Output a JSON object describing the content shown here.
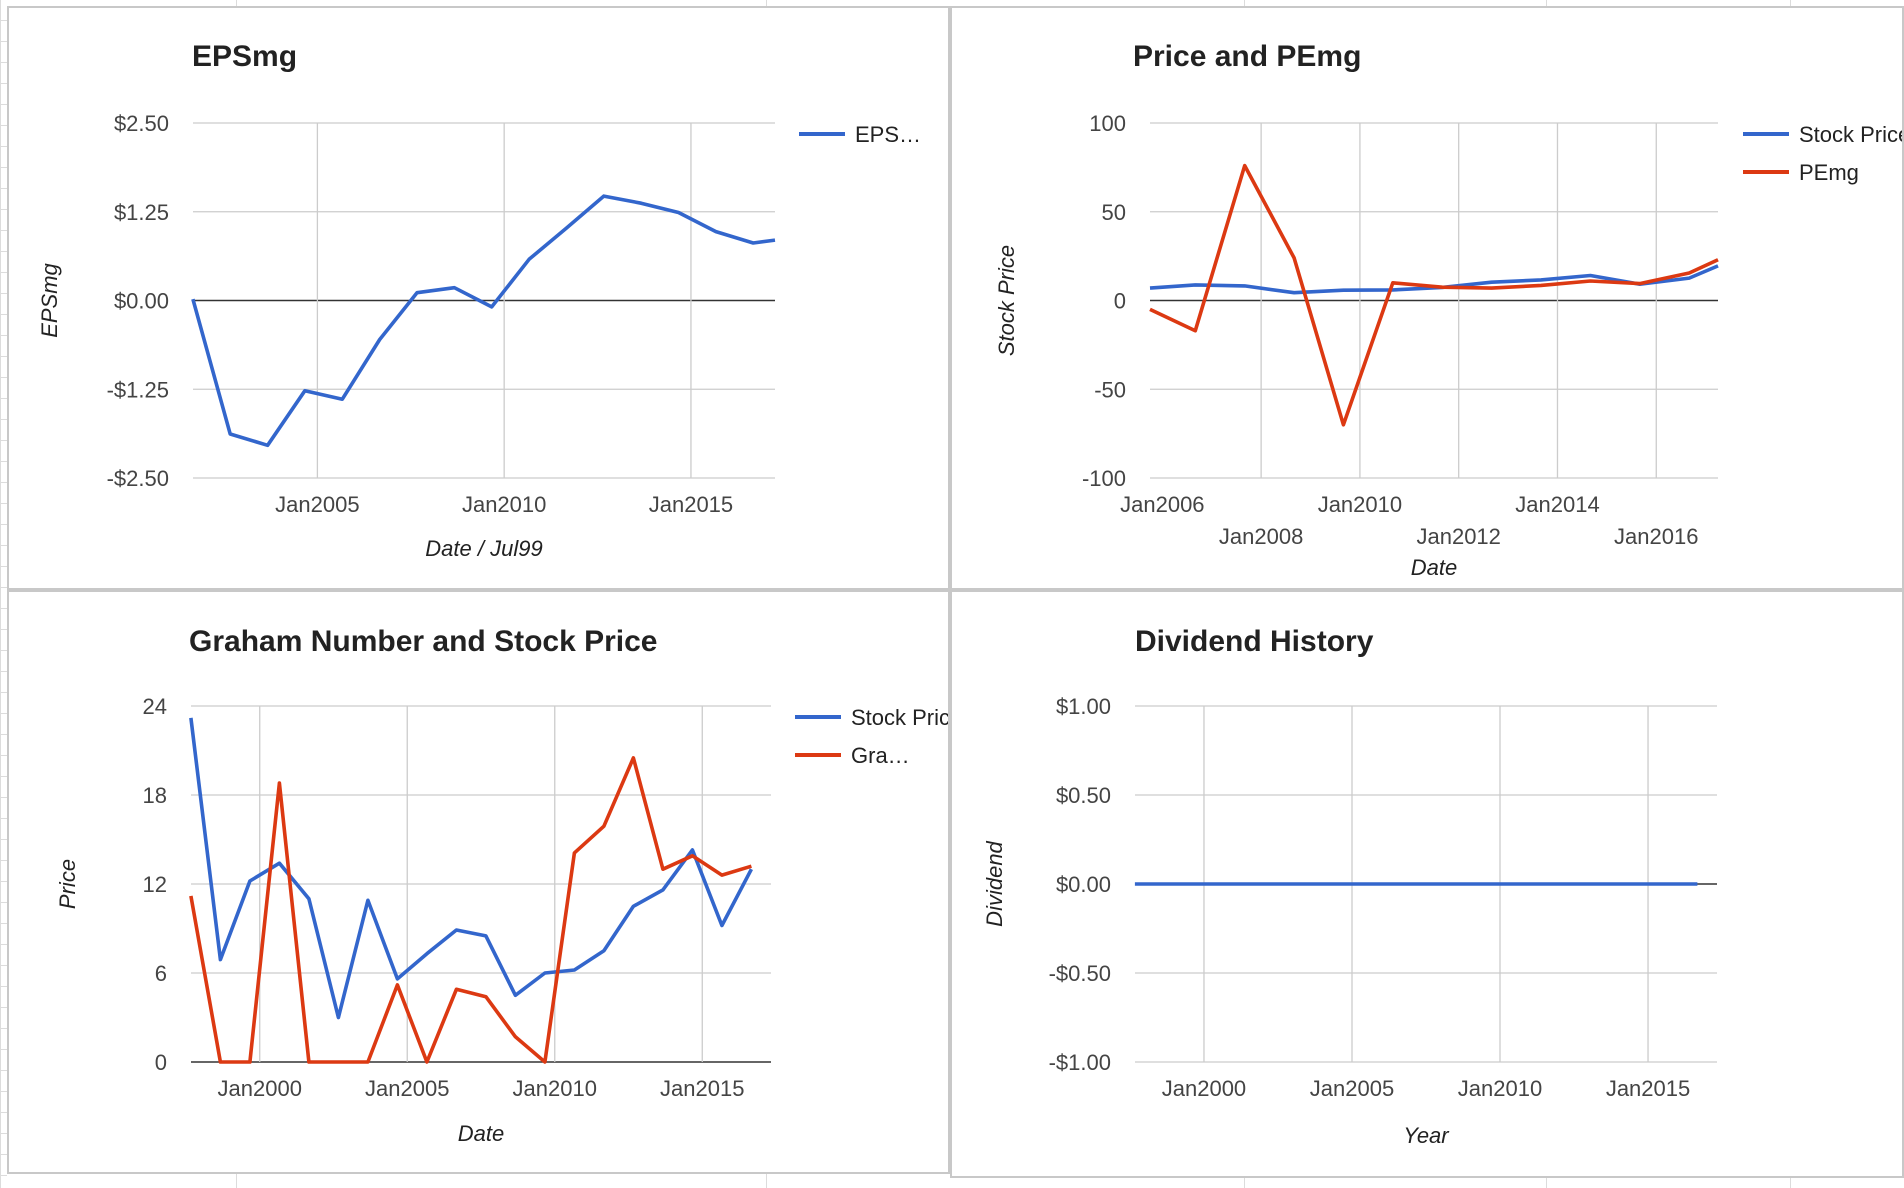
{
  "colors": {
    "stock_price": "#3366cc",
    "second_series": "#dc3912",
    "gridline": "#cccccc",
    "zero_line": "#333333",
    "panel_border": "#c8c8c8",
    "text": "#222222",
    "axis_text": "#444444"
  },
  "chart_data": [
    {
      "type": "line",
      "title": "EPSmg",
      "xlabel": "Date / Jul99",
      "ylabel": "EPSmg",
      "ylim": [
        -2.5,
        2.5
      ],
      "y_ticks": [
        "$2.50",
        "$1.25",
        "$0.00",
        "-$1.25",
        "-$2.50"
      ],
      "x_ticks": [
        "Jan2005",
        "Jan2010",
        "Jan2015"
      ],
      "legend_position": "right",
      "grid": true,
      "series": [
        {
          "name": "EPS…",
          "color": "#3366cc",
          "x": [
            "2001-09",
            "2002-09",
            "2003-09",
            "2004-09",
            "2005-09",
            "2006-09",
            "2007-09",
            "2008-09",
            "2009-09",
            "2010-09",
            "2011-09",
            "2012-09",
            "2013-09",
            "2014-09",
            "2015-09",
            "2016-09",
            "2017-04"
          ],
          "values": [
            0.02,
            -1.88,
            -2.04,
            -1.27,
            -1.39,
            -0.55,
            0.11,
            0.18,
            -0.09,
            0.58,
            1.02,
            1.47,
            1.37,
            1.24,
            0.97,
            0.81,
            0.85
          ]
        }
      ]
    },
    {
      "type": "line",
      "title": "Price and PEmg",
      "xlabel": "Date",
      "ylabel": "Stock Price",
      "ylim": [
        -100,
        100
      ],
      "y_ticks": [
        "100",
        "50",
        "0",
        "-50",
        "-100"
      ],
      "x_ticks": [
        "Jan2006",
        "Jan2008",
        "Jan2010",
        "Jan2012",
        "Jan2014",
        "Jan2016"
      ],
      "legend_position": "right",
      "grid": true,
      "series": [
        {
          "name": "Stock Price",
          "color": "#3366cc",
          "x": [
            "2005-10",
            "2006-09",
            "2007-09",
            "2008-09",
            "2009-09",
            "2010-09",
            "2011-09",
            "2012-09",
            "2013-09",
            "2014-09",
            "2015-09",
            "2016-09",
            "2017-04"
          ],
          "values": [
            7,
            8.8,
            8.2,
            4.4,
            5.8,
            6,
            7.4,
            10.3,
            11.6,
            14.1,
            9.2,
            12.6,
            19.5
          ]
        },
        {
          "name": "PEmg",
          "color": "#dc3912",
          "x": [
            "2005-10",
            "2006-09",
            "2007-09",
            "2008-09",
            "2009-09",
            "2010-09",
            "2011-09",
            "2012-09",
            "2013-09",
            "2014-09",
            "2015-09",
            "2016-09",
            "2017-04"
          ],
          "values": [
            -5,
            -17,
            76,
            24,
            -70,
            10,
            7.5,
            7,
            8.5,
            11,
            9.5,
            15.5,
            23
          ]
        }
      ]
    },
    {
      "type": "line",
      "title": "Graham Number and Stock Price",
      "xlabel": "Date",
      "ylabel": "Price",
      "ylim": [
        0,
        24
      ],
      "y_ticks": [
        "24",
        "18",
        "12",
        "6",
        "0"
      ],
      "x_ticks": [
        "Jan2000",
        "Jan2005",
        "Jan2010",
        "Jan2015"
      ],
      "legend_position": "right",
      "grid": true,
      "series": [
        {
          "name": "Stock Price",
          "color": "#3366cc",
          "x": [
            "1997-09",
            "1998-09",
            "1999-09",
            "2000-09",
            "2001-09",
            "2002-09",
            "2003-09",
            "2004-09",
            "2005-09",
            "2006-09",
            "2007-09",
            "2008-09",
            "2009-09",
            "2010-09",
            "2011-09",
            "2012-09",
            "2013-09",
            "2014-09",
            "2015-09",
            "2016-09"
          ],
          "values": [
            23.2,
            6.9,
            12.2,
            13.4,
            11,
            3,
            10.9,
            5.6,
            7.3,
            8.9,
            8.5,
            4.5,
            6,
            6.2,
            7.5,
            10.5,
            11.6,
            14.3,
            9.2,
            13
          ]
        },
        {
          "name": "Gra…",
          "color": "#dc3912",
          "x": [
            "1997-09",
            "1998-09",
            "1999-09",
            "2000-09",
            "2001-09",
            "2002-09",
            "2003-09",
            "2004-09",
            "2005-09",
            "2006-09",
            "2007-09",
            "2008-09",
            "2009-09",
            "2010-09",
            "2011-09",
            "2012-09",
            "2013-09",
            "2014-09",
            "2015-09",
            "2016-09"
          ],
          "values": [
            11.2,
            0,
            0,
            18.8,
            0,
            0,
            0,
            5.2,
            0,
            4.9,
            4.4,
            1.7,
            0,
            14.1,
            15.9,
            20.5,
            13,
            13.9,
            12.6,
            13.2
          ]
        }
      ]
    },
    {
      "type": "line",
      "title": "Dividend History",
      "xlabel": "Year",
      "ylabel": "Dividend",
      "ylim": [
        -1,
        1
      ],
      "y_ticks": [
        "$1.00",
        "$0.50",
        "$0.00",
        "-$0.50",
        "-$1.00"
      ],
      "x_ticks": [
        "Jan2000",
        "Jan2005",
        "Jan2010",
        "Jan2015"
      ],
      "legend_position": "none",
      "grid": true,
      "series": [
        {
          "color": "#3366cc",
          "x": [
            "1997-09",
            "2016-09"
          ],
          "values": [
            0,
            0
          ]
        }
      ]
    }
  ]
}
